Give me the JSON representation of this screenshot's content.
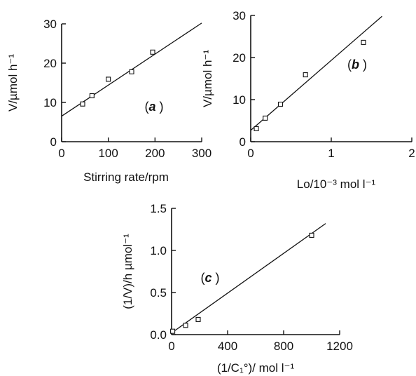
{
  "chart_data": [
    {
      "id": "a",
      "type": "scatter",
      "panel_label": "a",
      "xlabel": "Stirring rate/rpm",
      "ylabel": "V/µmol h⁻¹",
      "xlim": [
        0,
        300
      ],
      "ylim": [
        0,
        30
      ],
      "xticks": [
        0,
        100,
        200,
        300
      ],
      "yticks": [
        0,
        10,
        20,
        30
      ],
      "series": [
        {
          "x": [
            45,
            65,
            100,
            150,
            195
          ],
          "y": [
            9.6,
            11.7,
            15.9,
            17.8,
            22.8
          ]
        }
      ],
      "fit_line": {
        "x": [
          0,
          300
        ],
        "y": [
          6.5,
          30.2
        ]
      }
    },
    {
      "id": "b",
      "type": "scatter",
      "panel_label": "b",
      "xlabel": "Lo/10⁻³ mol l⁻¹",
      "ylabel": "V/µmol h⁻¹",
      "xlim": [
        0,
        2
      ],
      "ylim": [
        0,
        30
      ],
      "xticks": [
        0,
        1,
        2
      ],
      "yticks": [
        0,
        10,
        20,
        30
      ],
      "series": [
        {
          "x": [
            0.07,
            0.18,
            0.37,
            0.68,
            1.4
          ],
          "y": [
            3.1,
            5.6,
            8.9,
            15.9,
            23.6
          ]
        }
      ],
      "fit_line": {
        "x": [
          0,
          1.63
        ],
        "y": [
          2.7,
          29.8
        ]
      }
    },
    {
      "id": "c",
      "type": "scatter",
      "panel_label": "c",
      "xlabel": "(1/C₁°)/ mol l⁻¹",
      "ylabel": "(1/V)/h µmol⁻¹",
      "xlim": [
        0,
        1200
      ],
      "ylim": [
        0,
        1.5
      ],
      "xticks": [
        0,
        400,
        800,
        1200
      ],
      "ytick_labels": [
        "0.0",
        "0.5",
        "1.0",
        "1.5"
      ],
      "yticks": [
        0,
        0.5,
        1.0,
        1.5
      ],
      "series": [
        {
          "x": [
            8,
            100,
            190,
            1000
          ],
          "y": [
            0.04,
            0.11,
            0.18,
            1.18
          ]
        }
      ],
      "fit_line": {
        "x": [
          0,
          1100
        ],
        "y": [
          0.02,
          1.32
        ]
      }
    }
  ]
}
